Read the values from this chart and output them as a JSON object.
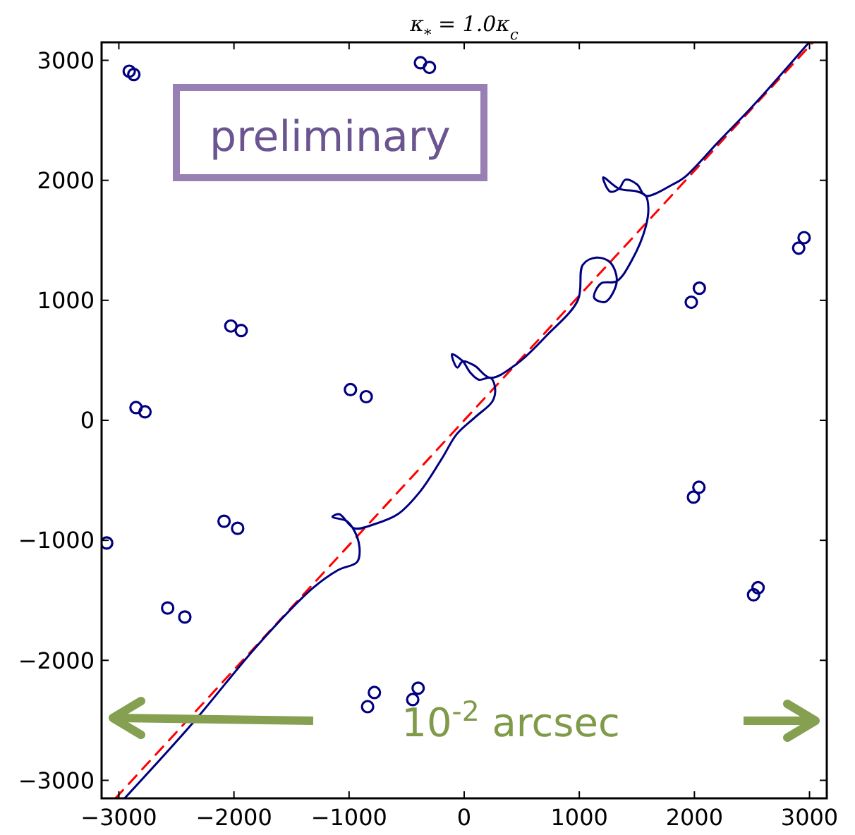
{
  "chart_data": {
    "type": "line",
    "title": "κ$_{*}$ = 1.0κ$_{c}$",
    "xlim": [
      -3150,
      3150
    ],
    "ylim": [
      -3150,
      3150
    ],
    "xticks": [
      {
        "value": -3000,
        "label": "−3000"
      },
      {
        "value": -2000,
        "label": "−2000"
      },
      {
        "value": -1000,
        "label": "−1000"
      },
      0,
      1000,
      2000,
      3000
    ],
    "yticks": [
      {
        "value": -3000,
        "label": "−3000"
      },
      {
        "value": -2000,
        "label": "−2000"
      },
      {
        "value": -1000,
        "label": "−1000"
      },
      0,
      1000,
      2000,
      3000
    ],
    "grid": false,
    "annotations": [
      "preliminary",
      "10$^{-2}$ arcsec"
    ],
    "series": [
      {
        "type": "line",
        "color": "#ff0000",
        "line_style": "dashed",
        "x": [
          -3030,
          3030
        ],
        "values": [
          -3150,
          3150
        ]
      },
      {
        "color": "#000080",
        "line_style": "solid",
        "x": [
          -2950,
          -2353,
          -1800,
          -1321,
          -1100,
          -929,
          -909,
          -953,
          -1020,
          -1145,
          -1086,
          -953,
          -776,
          -576,
          -380,
          -188,
          -67,
          100,
          247,
          267,
          227,
          129,
          51,
          -12,
          -106,
          -60,
          -12,
          90,
          227,
          459,
          718,
          988,
          1031,
          1149,
          1267,
          1326,
          1227,
          1129,
          1188,
          1326,
          1459,
          1577,
          1600,
          1577,
          1502,
          1345,
          1208,
          1267,
          1345,
          1400,
          1502,
          1577,
          1812,
          1914,
          2208,
          2522,
          2992
        ],
        "values": [
          -3150,
          -2517,
          -1880,
          -1403,
          -1250,
          -1179,
          -1061,
          -923,
          -840,
          -805,
          -782,
          -900,
          -864,
          -782,
          -590,
          -310,
          -118,
          30,
          161,
          279,
          354,
          338,
          400,
          492,
          551,
          440,
          492,
          456,
          354,
          472,
          708,
          1002,
          1297,
          1356,
          1317,
          1160,
          987,
          1022,
          1140,
          1160,
          1338,
          1612,
          1769,
          1871,
          1907,
          1930,
          2025,
          1907,
          1930,
          2005,
          1966,
          1871,
          1966,
          2025,
          2320,
          2634,
          3145
        ]
      },
      {
        "type": "scatter",
        "color": "#000080",
        "marker": "circle",
        "x": [
          -2910,
          -2870,
          -380,
          -302,
          -2027,
          -1937,
          -2851,
          -2773,
          -988,
          -851,
          -2086,
          -1968,
          -2576,
          -2427,
          -3106,
          -839,
          -780,
          -447,
          -400,
          1973,
          2043,
          2906,
          2953,
          1992,
          2039,
          2514,
          2553
        ],
        "values": [
          2909,
          2882,
          2980,
          2941,
          786,
          748,
          106,
          71,
          256,
          197,
          -841,
          -900,
          -1564,
          -1639,
          -1022,
          -2386,
          -2268,
          -2327,
          -2232,
          984,
          1101,
          1435,
          1522,
          -640,
          -558,
          -1454,
          -1395
        ]
      }
    ]
  }
}
